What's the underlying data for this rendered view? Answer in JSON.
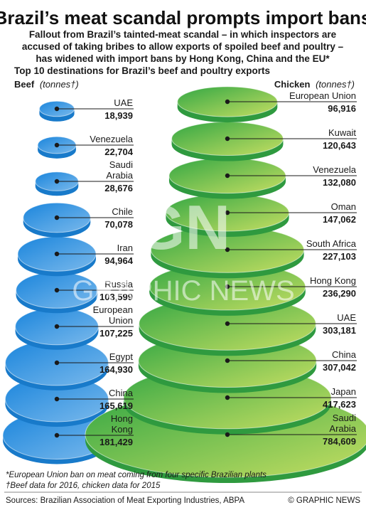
{
  "title": "Brazil’s meat scandal prompts import bans",
  "subtitle": [
    "Fallout from Brazil’s tainted-meat scandal – in which inspectors are",
    "accused of taking bribes to allow exports of spoiled beef and poultry –",
    "has widened with import bans by Hong Kong, China and the EU*"
  ],
  "section_heading": "Top 10 destinations for Brazil’s beef and poultry exports",
  "watermark": {
    "monogram": "GN",
    "text": "GRAPHIC NEWS"
  },
  "footnotes": [
    "*European Union ban on meat coming from four specific Brazilian plants",
    "†Beef data for 2016, chicken data for 2015"
  ],
  "source": "Sources: Brazilian Association of Meat Exporting Industries, ABPA",
  "credit": "© GRAPHIC NEWS",
  "colors": {
    "beef_top": "#1a85dc",
    "beef_bottom": "#7ab9ec",
    "chicken_top": "#33a744",
    "chicken_bottom": "#c5de62"
  },
  "chart_data": [
    {
      "type": "table",
      "name": "Beef",
      "unit": "(tonnes†)",
      "categories": [
        [
          "UAE"
        ],
        [
          "Venezuela"
        ],
        [
          "Saudi",
          "Arabia"
        ],
        [
          "Chile"
        ],
        [
          "Iran"
        ],
        [
          "Russia"
        ],
        [
          "European",
          "Union"
        ],
        [
          "Egypt"
        ],
        [
          "China"
        ],
        [
          "Hong",
          "Kong"
        ]
      ],
      "values": [
        18939,
        22704,
        28676,
        70078,
        94964,
        103599,
        107225,
        164930,
        165619,
        181429
      ],
      "labels": [
        "18,939",
        "22,704",
        "28,676",
        "70,078",
        "94,964",
        "103,599",
        "107,225",
        "164,930",
        "165,619",
        "181,429"
      ]
    },
    {
      "type": "table",
      "name": "Chicken",
      "unit": "(tonnes†)",
      "categories": [
        [
          "European Union"
        ],
        [
          "Kuwait"
        ],
        [
          "Venezuela"
        ],
        [
          "Oman"
        ],
        [
          "South Africa"
        ],
        [
          "Hong Kong"
        ],
        [
          "UAE"
        ],
        [
          "China"
        ],
        [
          "Japan"
        ],
        [
          "Saudi",
          "Arabia"
        ]
      ],
      "values": [
        96916,
        120643,
        132080,
        147062,
        227103,
        236290,
        303181,
        307042,
        417623,
        784609
      ],
      "labels": [
        "96,916",
        "120,643",
        "132,080",
        "147,062",
        "227,103",
        "236,290",
        "303,181",
        "307,042",
        "417,623",
        "784,609"
      ]
    }
  ]
}
